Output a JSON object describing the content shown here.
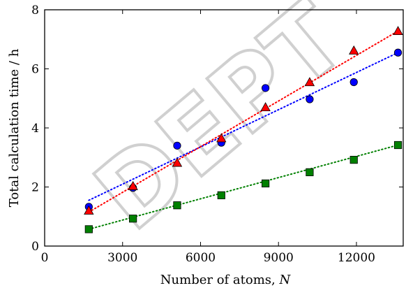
{
  "chart_data": {
    "type": "scatter",
    "title": "",
    "xlabel_prefix": "Number of atoms, ",
    "xlabel_var": "N",
    "ylabel": "Total calculation time / h",
    "xlim": [
      0,
      13800
    ],
    "ylim": [
      0,
      8
    ],
    "xticks": [
      0,
      3000,
      6000,
      9000,
      12000
    ],
    "yticks": [
      0,
      2,
      4,
      6,
      8
    ],
    "xtick_labels": [
      "0",
      "3000",
      "6000",
      "9000",
      "12000"
    ],
    "ytick_labels": [
      "0",
      "2",
      "4",
      "6",
      "8"
    ],
    "grid": false,
    "series": [
      {
        "marker": "circle",
        "color": "#0000ff",
        "x": [
          1700,
          3400,
          5100,
          6800,
          8500,
          10200,
          11900,
          13600
        ],
        "y": [
          1.33,
          1.97,
          3.4,
          3.5,
          5.35,
          4.97,
          5.55,
          6.55
        ],
        "fit": [
          1.55,
          6.55
        ]
      },
      {
        "marker": "triangle",
        "color": "#ff0000",
        "x": [
          1700,
          3400,
          5100,
          6800,
          8500,
          10200,
          11900,
          13600
        ],
        "y": [
          1.2,
          2.03,
          2.82,
          3.65,
          4.7,
          5.55,
          6.62,
          7.28
        ],
        "fit": [
          1.15,
          7.28
        ]
      },
      {
        "marker": "square",
        "color": "#008000",
        "x": [
          1700,
          3400,
          5100,
          6800,
          8500,
          10200,
          11900,
          13600
        ],
        "y": [
          0.57,
          0.93,
          1.38,
          1.72,
          2.12,
          2.5,
          2.92,
          3.42
        ],
        "fit": [
          0.57,
          3.42
        ]
      }
    ]
  },
  "watermark": {
    "text": "DEPT"
  }
}
